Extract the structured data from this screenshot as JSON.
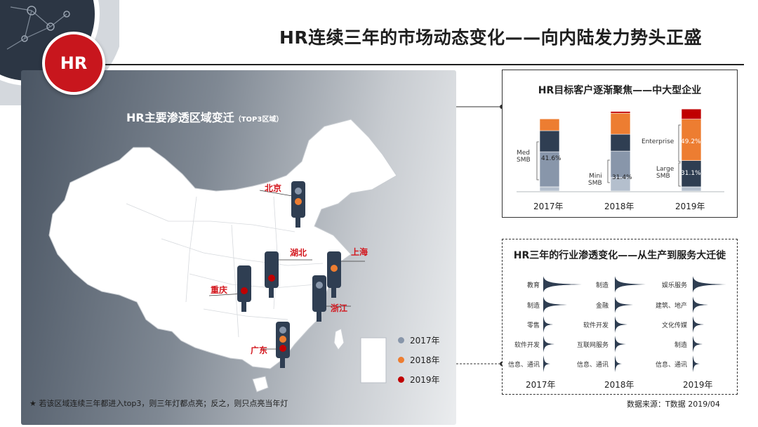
{
  "header": {
    "badge": "HR",
    "title": "HR连续三年的市场动态变化——向内陆发力势头正盛"
  },
  "map_panel": {
    "title": "HR主要渗透区域变迁",
    "title_suffix": "（TOP3区域）",
    "cities": [
      "北京",
      "湖北",
      "上海",
      "重庆",
      "浙江",
      "广东"
    ],
    "legend": [
      {
        "label": "2017年",
        "color": "#8896aa"
      },
      {
        "label": "2018年",
        "color": "#ed7d31"
      },
      {
        "label": "2019年",
        "color": "#c00000"
      }
    ],
    "footnote": "★   若该区域连续三年都进入top3，则三年灯都点亮；反之，则只点亮当年灯"
  },
  "colors": {
    "brand_red": "#c8161d",
    "navy": "#2f3e52",
    "steel": "#8896aa",
    "light_steel": "#b4bfcd",
    "orange": "#ed7d31",
    "dark_red": "#c00000"
  },
  "customer_chart": {
    "title": "HR目标客户逐渐聚焦——中大型企业",
    "years": [
      "2017年",
      "2018年",
      "2019年"
    ],
    "bars": [
      {
        "year": "2017年",
        "segments": [
          {
            "name": "small",
            "value": 0.05,
            "color": "light_steel"
          },
          {
            "name": "medium",
            "value": 0.416,
            "color": "steel"
          },
          {
            "name": "large",
            "value": 0.25,
            "color": "navy"
          },
          {
            "name": "enterprise",
            "value": 0.14,
            "color": "orange"
          }
        ]
      },
      {
        "year": "2018年",
        "segments": [
          {
            "name": "small",
            "value": 0.16,
            "color": "light_steel"
          },
          {
            "name": "medium",
            "value": 0.314,
            "color": "steel"
          },
          {
            "name": "large",
            "value": 0.2,
            "color": "navy"
          },
          {
            "name": "enterprise",
            "value": 0.25,
            "color": "orange"
          },
          {
            "name": "other",
            "value": 0.02,
            "color": "dark_red"
          }
        ]
      },
      {
        "year": "2019年",
        "segments": [
          {
            "name": "small",
            "value": 0.05,
            "color": "light_steel"
          },
          {
            "name": "large",
            "value": 0.311,
            "color": "navy"
          },
          {
            "name": "enterprise",
            "value": 0.492,
            "color": "orange"
          },
          {
            "name": "other",
            "value": 0.12,
            "color": "dark_red"
          }
        ]
      }
    ],
    "labels": {
      "med_smb": "Med\nSMB",
      "pct_2017": "41.6%",
      "mini_smb": "Mini\nSMB",
      "pct_2018": "31.4%",
      "enterprise": "Enterprise",
      "pct_2019_ent": "49.2%",
      "large_smb": "Large\nSMB",
      "pct_2019_large": "31.1%"
    }
  },
  "industry_chart": {
    "title": "HR三年的行业渗透变化——从生产到服务大迁徙",
    "columns": [
      {
        "year": "2017年",
        "items": [
          "教育",
          "制造",
          "零售",
          "软件开发",
          "信息、通讯"
        ]
      },
      {
        "year": "2018年",
        "items": [
          "制造",
          "金融",
          "软件开发",
          "互联网服务",
          "信息、通讯"
        ]
      },
      {
        "year": "2019年",
        "items": [
          "娱乐服务",
          "建筑、地产",
          "文化传媒",
          "制造",
          "信息、通讯"
        ]
      }
    ]
  },
  "footer": {
    "source": "数据来源：T数据 2019/04"
  }
}
